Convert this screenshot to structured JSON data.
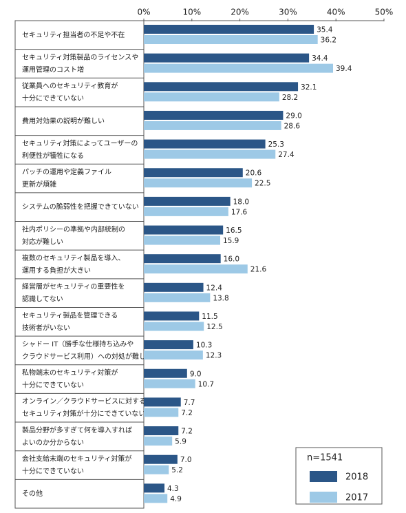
{
  "chart_data": {
    "type": "hbar",
    "categories": [
      "セキュリティ担当者の不足や不在",
      "セキュリティ対策製品のライセンスや\n運用管理のコスト増",
      "従業員へのセキュリティ教育が\n十分にできていない",
      "費用対効果の説明が難しい",
      "セキュリティ対策によってユーザーの\n利便性が犠牲になる",
      "パッチの運用や定義ファイル\n更新が煩雑",
      "システムの脆弱性を把握できていない",
      "社内ポリシーの準拠や内部統制の\n対応が難しい",
      "複数のセキュリティ製品を導入、\n運用する負担が大きい",
      "経営層がセキュリティの重要性を\n認識してない",
      "セキュリティ製品を管理できる\n技術者がいない",
      "シャドー IT（勝手な仕様持ち込みや\nクラウドサービス利用）への対処が難しい",
      "私物端末のセキュリティ対策が\n十分にできていない",
      "オンライン／クラウドサービスに対する\nセキュリティ対策が十分にできていない",
      "製品分野が多すぎて何を導入すれば\nよいのか分からない",
      "会社支給末端のセキュリティ対策が\n十分にできていない",
      "その他"
    ],
    "series": [
      {
        "name": "2018",
        "color": "#2b5687",
        "values": [
          35.4,
          34.4,
          32.1,
          29.0,
          25.3,
          20.6,
          18.0,
          16.5,
          16.0,
          12.4,
          11.5,
          10.3,
          9.0,
          7.7,
          7.2,
          7.0,
          4.3
        ],
        "value_labels": [
          "35.4",
          "34.4",
          "32.1",
          "29.0",
          "25.3",
          "20.6",
          "18.0",
          "16.5",
          "16.0",
          "12.4",
          "11.5",
          "10.3",
          "9.0",
          "7.7",
          "7.2",
          "7.0",
          "4.3"
        ]
      },
      {
        "name": "2017",
        "color": "#9dc9e6",
        "values": [
          36.2,
          39.4,
          28.2,
          28.6,
          27.4,
          22.5,
          17.6,
          15.9,
          21.6,
          13.8,
          12.5,
          12.3,
          10.7,
          7.2,
          5.9,
          5.2,
          4.9
        ],
        "value_labels": [
          "36.2",
          "39.4",
          "28.2",
          "28.6",
          "27.4",
          "22.5",
          "17.6",
          "15.9",
          "21.6",
          "13.8",
          "12.5",
          "12.3",
          "10.7",
          "7.2",
          "5.9",
          "5.2",
          "4.9"
        ]
      }
    ],
    "xlim": [
      0,
      50
    ],
    "xticks": [
      {
        "value": 0,
        "label": "0%"
      },
      {
        "value": 10,
        "label": "10%"
      },
      {
        "value": 20,
        "label": "20%"
      },
      {
        "value": 30,
        "label": "30%"
      },
      {
        "value": 40,
        "label": "40%"
      },
      {
        "value": 50,
        "label": "50%"
      }
    ],
    "annotation": "n=1541",
    "grid": false,
    "legend": "lower right"
  }
}
